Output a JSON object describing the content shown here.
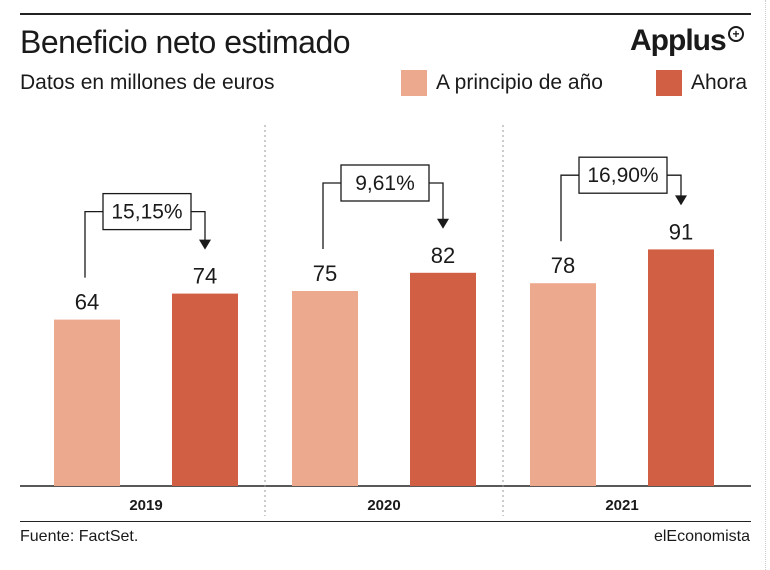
{
  "header": {
    "title": "Beneficio neto estimado",
    "subtitle": "Datos en millones de euros",
    "logo": "Applus"
  },
  "legend": [
    {
      "label": "A principio de año",
      "color": "#eca98d"
    },
    {
      "label": "Ahora",
      "color": "#d15f44"
    }
  ],
  "chart_data": {
    "type": "bar",
    "title": "Beneficio neto estimado",
    "subtitle": "Datos en millones de euros",
    "categories": [
      "2019",
      "2020",
      "2021"
    ],
    "series": [
      {
        "name": "A principio de año",
        "values": [
          64,
          75,
          78
        ],
        "color": "#eca98d"
      },
      {
        "name": "Ahora",
        "values": [
          74,
          82,
          91
        ],
        "color": "#d15f44"
      }
    ],
    "changes": [
      "15,15%",
      "9,61%",
      "16,90%"
    ],
    "ylim": [
      0,
      100
    ],
    "grid": false
  },
  "footer": {
    "source": "Fuente: FactSet.",
    "brand": "elEconomista"
  }
}
